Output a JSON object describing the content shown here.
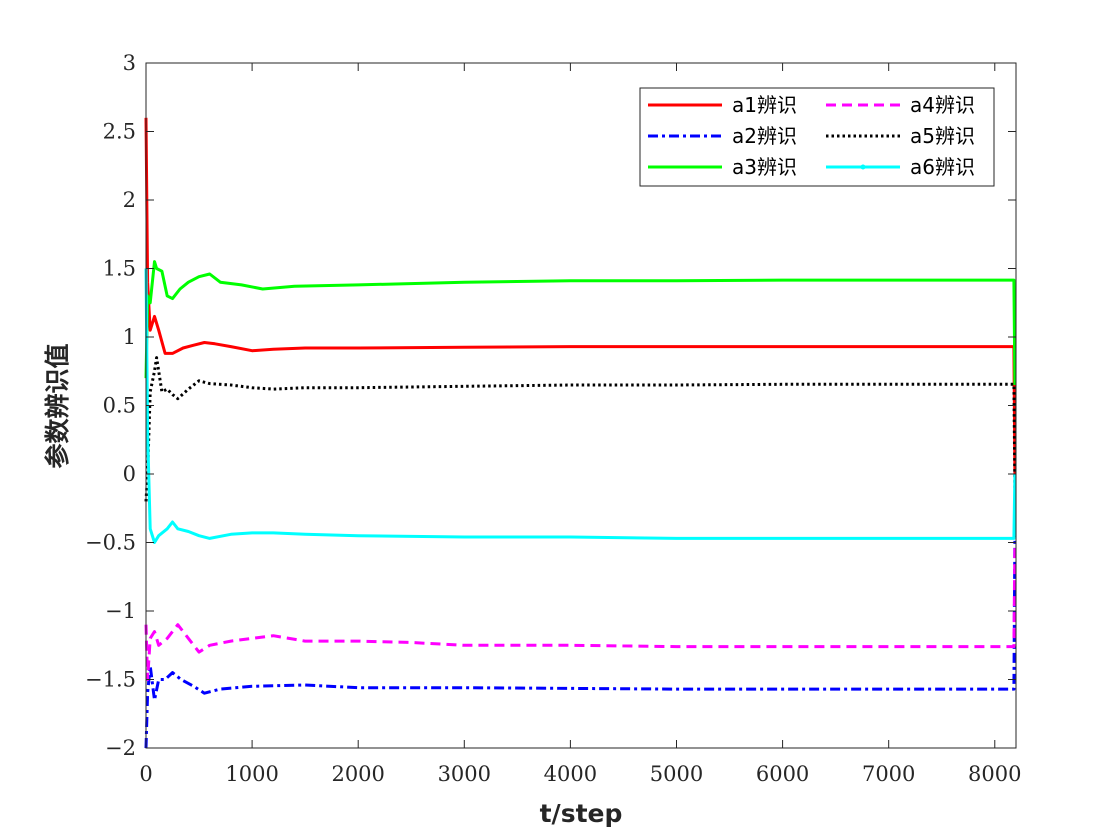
{
  "chart_data": {
    "type": "line",
    "xlabel": "t/step",
    "ylabel": "参数辨识值",
    "xlim": [
      0,
      8200
    ],
    "ylim": [
      -2,
      3
    ],
    "xticks": [
      0,
      1000,
      2000,
      3000,
      4000,
      5000,
      6000,
      7000,
      8000
    ],
    "yticks": [
      -2,
      -1.5,
      -1,
      -0.5,
      0,
      0.5,
      1,
      1.5,
      2,
      2.5,
      3
    ],
    "xtick_labels": [
      "0",
      "1000",
      "2000",
      "3000",
      "4000",
      "5000",
      "6000",
      "7000",
      "8000"
    ],
    "ytick_labels": [
      "−2",
      "−1.5",
      "−1",
      "−0.5",
      "0",
      "0.5",
      "1",
      "1.5",
      "2",
      "2.5",
      "3"
    ],
    "grid": false,
    "legend_position": "top-right",
    "series": [
      {
        "name": "a1辨识",
        "color": "#ff0000",
        "style": "solid",
        "x": [
          0,
          15,
          40,
          80,
          120,
          180,
          250,
          350,
          450,
          550,
          650,
          800,
          1000,
          1200,
          1500,
          2000,
          3000,
          4000,
          5000,
          6000,
          7000,
          8180,
          8190
        ],
        "y": [
          2.6,
          1.4,
          1.05,
          1.15,
          1.05,
          0.88,
          0.88,
          0.92,
          0.94,
          0.96,
          0.95,
          0.93,
          0.9,
          0.91,
          0.92,
          0.92,
          0.925,
          0.93,
          0.93,
          0.93,
          0.93,
          0.93,
          0.0
        ]
      },
      {
        "name": "a2辨识",
        "color": "#0000ff",
        "style": "dashdot",
        "x": [
          0,
          15,
          40,
          80,
          120,
          180,
          250,
          330,
          450,
          550,
          700,
          1000,
          1500,
          2000,
          3000,
          4000,
          5000,
          6000,
          7000,
          8180,
          8190
        ],
        "y": [
          -2.0,
          -1.6,
          -1.4,
          -1.65,
          -1.5,
          -1.5,
          -1.45,
          -1.5,
          -1.55,
          -1.6,
          -1.57,
          -1.55,
          -1.54,
          -1.56,
          -1.56,
          -1.565,
          -1.57,
          -1.57,
          -1.57,
          -1.57,
          -0.45
        ]
      },
      {
        "name": "a3辨识",
        "color": "#00ff00",
        "style": "solid",
        "x": [
          0,
          15,
          40,
          80,
          100,
          150,
          200,
          250,
          320,
          400,
          500,
          600,
          700,
          900,
          1100,
          1400,
          2000,
          3000,
          4000,
          5000,
          6000,
          7000,
          8180,
          8190
        ],
        "y": [
          0.7,
          1.3,
          1.25,
          1.55,
          1.5,
          1.48,
          1.3,
          1.28,
          1.35,
          1.4,
          1.44,
          1.46,
          1.4,
          1.38,
          1.35,
          1.37,
          1.38,
          1.4,
          1.41,
          1.41,
          1.415,
          1.415,
          1.415,
          0.65
        ]
      },
      {
        "name": "a4辨识",
        "color": "#ff00ff",
        "style": "dashed",
        "x": [
          0,
          15,
          40,
          80,
          120,
          200,
          300,
          400,
          500,
          600,
          800,
          1000,
          1200,
          1500,
          2000,
          2500,
          3000,
          4000,
          5000,
          6000,
          7000,
          8180,
          8190
        ],
        "y": [
          -1.1,
          -1.5,
          -1.2,
          -1.15,
          -1.25,
          -1.2,
          -1.1,
          -1.2,
          -1.3,
          -1.25,
          -1.22,
          -1.2,
          -1.18,
          -1.22,
          -1.22,
          -1.23,
          -1.25,
          -1.25,
          -1.26,
          -1.26,
          -1.26,
          -1.26,
          -0.5
        ]
      },
      {
        "name": "a5辨识",
        "color": "#000000",
        "style": "dotted",
        "x": [
          0,
          15,
          40,
          80,
          100,
          150,
          200,
          250,
          300,
          400,
          500,
          600,
          800,
          1000,
          1200,
          1500,
          2000,
          3000,
          4000,
          5000,
          6000,
          7000,
          8180,
          8190
        ],
        "y": [
          -0.2,
          0.0,
          0.6,
          0.75,
          0.85,
          0.6,
          0.62,
          0.58,
          0.55,
          0.62,
          0.68,
          0.66,
          0.65,
          0.63,
          0.62,
          0.63,
          0.63,
          0.64,
          0.65,
          0.65,
          0.655,
          0.655,
          0.655,
          -0.1
        ]
      },
      {
        "name": "a6辨识",
        "color": "#00ffff",
        "style": "solid-dot",
        "x": [
          0,
          15,
          40,
          80,
          120,
          200,
          250,
          300,
          400,
          500,
          600,
          800,
          1000,
          1200,
          1500,
          2000,
          3000,
          4000,
          5000,
          6000,
          7000,
          8180,
          8190
        ],
        "y": [
          1.5,
          0.3,
          -0.4,
          -0.5,
          -0.45,
          -0.4,
          -0.35,
          -0.4,
          -0.42,
          -0.45,
          -0.47,
          -0.44,
          -0.43,
          -0.43,
          -0.44,
          -0.45,
          -0.46,
          -0.46,
          -0.47,
          -0.47,
          -0.47,
          -0.47,
          0.0
        ]
      }
    ]
  }
}
